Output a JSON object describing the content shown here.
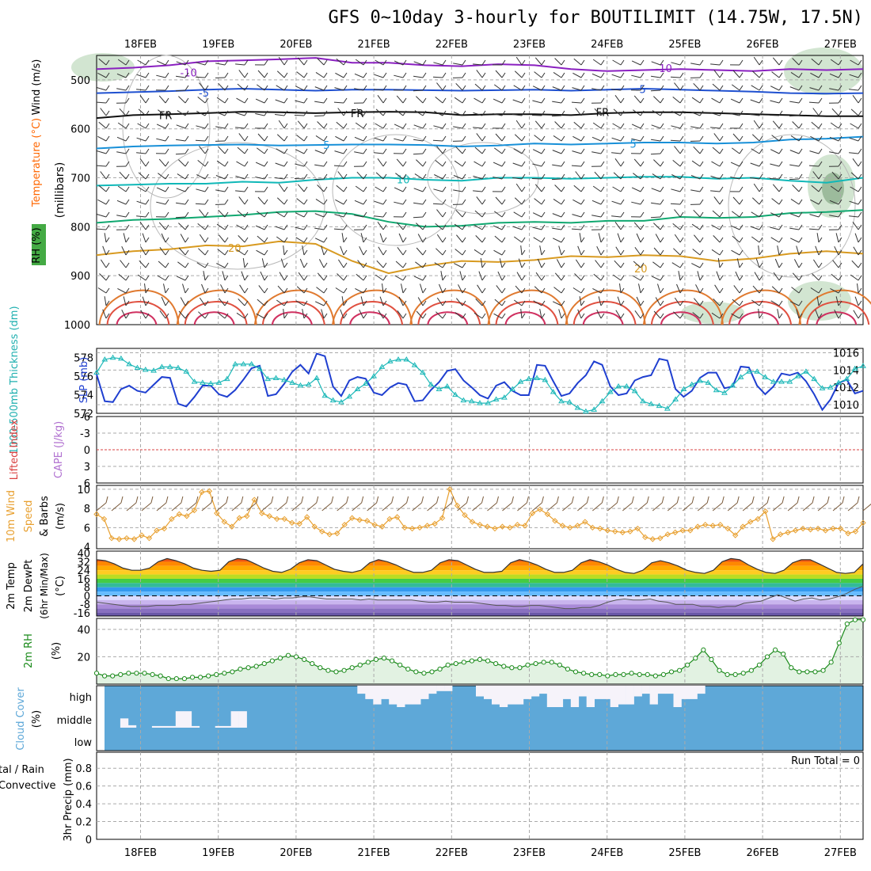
{
  "title": "GFS 0~10day 3-hourly for BOUTILIMIT (14.75W, 17.5N)",
  "colors": {
    "wind_barb": "#333333",
    "rh_fill": "#2e8b57",
    "slp": "#1f3fd0",
    "thickness": "#1cb8b8",
    "lifted": "#d94040",
    "wind_speed": "#e8a030",
    "rh_line": "#1a8a1a",
    "cloud": "#5ea8d8",
    "precip_total": "#2a9a2a",
    "precip_conv": "#dd2222",
    "temp_label": "#ff6600",
    "cape_label": "#b070d0",
    "thickness_label": "#20b0b0"
  },
  "chart_data": [
    {
      "panel": "upper-air",
      "type": "contour",
      "ylabel_parts": [
        "Wind (m/s)",
        "Temperature (°C)",
        "RH (%)",
        "(millibars)"
      ],
      "x_dates": [
        "18FEB",
        "19FEB",
        "20FEB",
        "21FEB",
        "22FEB",
        "23FEB",
        "24FEB",
        "25FEB",
        "26FEB",
        "27FEB"
      ],
      "ylim": [
        1000,
        450
      ],
      "y_ticks": [
        500,
        600,
        700,
        800,
        900,
        1000
      ],
      "temperature_contours": [
        {
          "label": "-10",
          "color": "#8a20c0",
          "levels_mb": [
            478,
            475,
            470,
            462,
            460,
            458,
            455,
            465,
            465,
            470,
            472,
            468,
            470,
            478,
            482,
            480,
            478,
            480,
            482,
            478,
            480,
            478
          ]
        },
        {
          "label": "-5",
          "color": "#1f50d0",
          "levels_mb": [
            527,
            525,
            523,
            520,
            518,
            520,
            522,
            520,
            520,
            521,
            522,
            521,
            520,
            522,
            520,
            518,
            520,
            522,
            524,
            527,
            528,
            527
          ]
        },
        {
          "label": "FR",
          "color": "#111111",
          "levels_mb": [
            578,
            572,
            570,
            568,
            565,
            566,
            568,
            566,
            565,
            566,
            572,
            570,
            570,
            572,
            568,
            566,
            566,
            568,
            570,
            572,
            574,
            574
          ]
        },
        {
          "label": "5",
          "color": "#1890d8",
          "levels_mb": [
            640,
            636,
            634,
            633,
            632,
            634,
            633,
            632,
            632,
            633,
            636,
            634,
            630,
            632,
            630,
            628,
            628,
            630,
            628,
            622,
            620,
            616
          ]
        },
        {
          "label": "10",
          "color": "#10b8b8",
          "levels_mb": [
            716,
            714,
            712,
            712,
            708,
            710,
            704,
            700,
            700,
            704,
            706,
            700,
            700,
            702,
            700,
            698,
            698,
            702,
            700,
            706,
            710,
            700
          ]
        },
        {
          "label": "",
          "color": "#10a870",
          "levels_mb": [
            792,
            786,
            784,
            780,
            776,
            770,
            768,
            774,
            790,
            800,
            798,
            792,
            790,
            792,
            788,
            788,
            780,
            782,
            780,
            772,
            770,
            766
          ]
        },
        {
          "label": "20",
          "color": "#d89a20",
          "levels_mb": [
            858,
            850,
            846,
            838,
            840,
            830,
            835,
            870,
            895,
            880,
            870,
            872,
            868,
            860,
            862,
            858,
            860,
            870,
            865,
            855,
            850,
            855
          ]
        }
      ],
      "contour_labels": [
        {
          "text": "-10",
          "x": 0.12,
          "mb": 485
        },
        {
          "text": "-10",
          "x": 0.74,
          "mb": 476
        },
        {
          "text": "-5",
          "x": 0.14,
          "mb": 526
        },
        {
          "text": "-5",
          "x": 0.71,
          "mb": 519
        },
        {
          "text": "FR",
          "x": 0.09,
          "mb": 572
        },
        {
          "text": "FR",
          "x": 0.34,
          "mb": 568
        },
        {
          "text": "FR",
          "x": 0.66,
          "mb": 566
        },
        {
          "text": "5",
          "x": 0.3,
          "mb": 633
        },
        {
          "text": "5",
          "x": 0.7,
          "mb": 630
        },
        {
          "text": "10",
          "x": 0.4,
          "mb": 703
        },
        {
          "text": "20",
          "x": 0.18,
          "mb": 843
        },
        {
          "text": "20",
          "x": 0.71,
          "mb": 885
        }
      ]
    },
    {
      "panel": "slp-thickness",
      "type": "line",
      "ylabel_left": "1000-500mb Thickness (dm)",
      "ylabel_right": "SLP (mb)",
      "thickness_ticks": [
        572,
        574,
        576,
        578
      ],
      "slp_ticks": [
        1010,
        1012,
        1014,
        1016
      ],
      "thickness_ylim": [
        572,
        579
      ],
      "slp_ylim": [
        1009,
        1016.5
      ],
      "slp_values": [
        1013.5,
        1010.4,
        1010.3,
        1011.8,
        1012.2,
        1011.6,
        1011.4,
        1012.3,
        1013.2,
        1013.1,
        1010.1,
        1009.8,
        1010.9,
        1012.2,
        1012.2,
        1011.2,
        1010.9,
        1011.7,
        1012.9,
        1014.2,
        1014.5,
        1011.0,
        1011.2,
        1012.4,
        1013.8,
        1014.6,
        1013.6,
        1015.9,
        1015.6,
        1012.1,
        1011.0,
        1012.8,
        1013.2,
        1013.0,
        1011.4,
        1011.1,
        1012.0,
        1012.5,
        1012.3,
        1010.4,
        1010.5,
        1011.7,
        1012.6,
        1013.9,
        1014.1,
        1012.8,
        1012.0,
        1011.1,
        1010.7,
        1012.2,
        1012.6,
        1011.6,
        1011.1,
        1011.1,
        1014.6,
        1014.5,
        1012.7,
        1011.0,
        1011.3,
        1012.5,
        1013.4,
        1015.0,
        1014.6,
        1012.1,
        1011.1,
        1011.3,
        1012.8,
        1013.2,
        1013.4,
        1015.3,
        1015.1,
        1011.8,
        1010.9,
        1011.6,
        1013.1,
        1013.7,
        1013.7,
        1011.9,
        1012.1,
        1014.4,
        1014.3,
        1012.2,
        1011.2,
        1012.1,
        1013.6,
        1013.4,
        1013.7,
        1012.7,
        1011.2,
        1009.4,
        1010.6,
        1012.5,
        1012.9,
        1011.3,
        1011.6
      ],
      "thickness_values": [
        576.4,
        577.8,
        578.0,
        577.9,
        577.3,
        576.9,
        576.7,
        576.6,
        577.0,
        577.0,
        576.9,
        576.5,
        575.4,
        575.3,
        575.2,
        575.3,
        575.7,
        577.3,
        577.3,
        577.3,
        576.8,
        575.7,
        575.8,
        575.6,
        575.3,
        575.0,
        575.1,
        575.8,
        573.9,
        573.4,
        573.2,
        573.8,
        574.6,
        575.2,
        576.0,
        577.0,
        577.6,
        577.8,
        577.8,
        577.2,
        576.4,
        575.1,
        574.6,
        574.9,
        574.0,
        573.4,
        573.3,
        573.1,
        573.1,
        573.5,
        573.7,
        574.6,
        575.4,
        575.7,
        575.8,
        575.6,
        574.3,
        573.3,
        573.2,
        572.6,
        572.2,
        572.4,
        573.3,
        574.3,
        574.9,
        574.9,
        574.4,
        573.3,
        573.0,
        572.8,
        572.5,
        573.5,
        574.6,
        575.1,
        575.5,
        575.3,
        574.5,
        574.2,
        575.0,
        575.9,
        576.5,
        576.5,
        575.9,
        575.4,
        575.4,
        575.4,
        576.0,
        576.5,
        575.7,
        574.7,
        574.8,
        575.3,
        575.7,
        576.8,
        577.1
      ]
    },
    {
      "panel": "cape-li",
      "type": "line",
      "ylabel_left": "Lifted Index",
      "ylabel_right": "CAPE (J/kg)",
      "li_ticks": [
        "-6",
        "-3",
        "0",
        "3",
        "6"
      ],
      "li_ylim": [
        -6,
        6
      ],
      "li_zero_dashed": true
    },
    {
      "panel": "surface-wind",
      "type": "line",
      "ylabel": "10m Wind Speed (m/s) & Barbs",
      "y_ticks": [
        4,
        6,
        8,
        10
      ],
      "ylim": [
        3.8,
        10.4
      ],
      "values": [
        7.4,
        6.9,
        4.9,
        4.8,
        4.9,
        4.8,
        5.2,
        4.9,
        5.7,
        5.9,
        6.9,
        7.4,
        7.2,
        7.8,
        9.7,
        9.8,
        7.5,
        6.6,
        6.1,
        7.0,
        7.2,
        8.9,
        7.5,
        7.2,
        6.9,
        6.9,
        6.5,
        6.4,
        7.1,
        6.1,
        5.6,
        5.3,
        5.4,
        6.3,
        7.0,
        6.8,
        6.7,
        6.3,
        6.1,
        6.9,
        7.1,
        6.0,
        5.9,
        6.0,
        6.2,
        6.4,
        7.0,
        10.0,
        8.3,
        7.3,
        6.6,
        6.3,
        6.1,
        5.9,
        6.1,
        6.0,
        6.3,
        6.2,
        7.5,
        7.9,
        7.4,
        6.7,
        6.2,
        6.0,
        6.2,
        6.6,
        6.0,
        5.9,
        5.7,
        5.6,
        5.5,
        5.6,
        5.9,
        5.0,
        4.8,
        4.9,
        5.3,
        5.5,
        5.7,
        5.7,
        6.1,
        6.3,
        6.2,
        6.3,
        5.9,
        5.2,
        6.1,
        6.6,
        6.9,
        7.7,
        4.8,
        5.3,
        5.5,
        5.7,
        5.9,
        5.8,
        5.9,
        5.7,
        5.9,
        5.9,
        5.4,
        5.6,
        6.5
      ]
    },
    {
      "panel": "temp-dewpoint",
      "type": "area",
      "ylabel": "2m Temp 2m DewPt (6hr Min/Max) (°C)",
      "y_ticks": [
        -16,
        -8,
        0,
        8,
        16,
        24,
        32,
        40
      ],
      "ylim": [
        -19,
        42
      ],
      "temp_values": [
        34,
        33,
        30,
        26,
        24,
        24,
        26,
        32,
        35,
        33,
        30,
        26,
        24,
        23,
        24,
        32,
        35,
        34,
        30,
        26,
        23,
        22,
        25,
        31,
        34,
        33,
        29,
        25,
        23,
        22,
        24,
        31,
        34,
        32,
        29,
        25,
        22,
        22,
        24,
        31,
        34,
        33,
        29,
        25,
        22,
        22,
        23,
        31,
        34,
        32,
        29,
        25,
        22,
        22,
        24,
        31,
        34,
        32,
        29,
        25,
        22,
        21,
        24,
        31,
        33,
        31,
        28,
        24,
        22,
        21,
        24,
        32,
        35,
        34,
        29,
        25,
        22,
        21,
        24,
        31,
        34,
        34,
        30,
        26,
        22,
        21,
        22,
        30
      ],
      "dewpoint_values": [
        -6,
        -7,
        -8,
        -9,
        -10,
        -10,
        -10,
        -9,
        -9,
        -9,
        -8,
        -8,
        -7,
        -6,
        -5,
        -4,
        -3,
        -3,
        -2,
        -2,
        -2,
        -3,
        -2,
        -2,
        -1,
        -1,
        -2,
        -3,
        -3,
        -3,
        -3,
        -4,
        -3,
        -4,
        -4,
        -4,
        -4,
        -4,
        -5,
        -6,
        -6,
        -5,
        -6,
        -6,
        -6,
        -7,
        -8,
        -9,
        -9,
        -10,
        -10,
        -9,
        -9,
        -10,
        -11,
        -12,
        -12,
        -11,
        -11,
        -9,
        -6,
        -4,
        -3,
        -4,
        -4,
        -3,
        -5,
        -6,
        -8,
        -8,
        -8,
        -10,
        -10,
        -11,
        -10,
        -10,
        -7,
        -6,
        -5,
        -2,
        1,
        -2,
        -5,
        -3,
        -2,
        -4,
        -3,
        -1,
        2,
        6,
        9
      ]
    },
    {
      "panel": "surface-rh",
      "type": "area",
      "ylabel": "2m RH (%)",
      "y_ticks": [
        20,
        40
      ],
      "ylim": [
        0,
        48
      ],
      "values": [
        8,
        6,
        6,
        7,
        8,
        8,
        8,
        7,
        6,
        4,
        4,
        4,
        5,
        5,
        6,
        7,
        8,
        9,
        11,
        12,
        13,
        15,
        17,
        19,
        21,
        20,
        18,
        15,
        12,
        10,
        9,
        10,
        12,
        14,
        16,
        18,
        19,
        17,
        14,
        11,
        9,
        8,
        9,
        11,
        14,
        15,
        16,
        17,
        18,
        17,
        15,
        13,
        12,
        12,
        14,
        15,
        16,
        16,
        14,
        11,
        9,
        8,
        7,
        7,
        6,
        7,
        7,
        8,
        7,
        7,
        6,
        7,
        9,
        10,
        14,
        19,
        25,
        18,
        10,
        7,
        7,
        8,
        10,
        14,
        20,
        25,
        22,
        12,
        9,
        9,
        9,
        10,
        16,
        30,
        44,
        47,
        47
      ]
    },
    {
      "panel": "cloud-cover",
      "type": "bar",
      "ylabel": "Cloud Cover (%)",
      "levels": [
        "high",
        "middle",
        "low"
      ],
      "high_cover": [
        0,
        0,
        0,
        0,
        0,
        0,
        0,
        0,
        0,
        0,
        0,
        0,
        0,
        0,
        0,
        0,
        0,
        0,
        0,
        0,
        0,
        0,
        0,
        0,
        0,
        0,
        0,
        0,
        0,
        0,
        0,
        0,
        0,
        18,
        30,
        42,
        30,
        42,
        48,
        42,
        42,
        30,
        18,
        12,
        12,
        0,
        0,
        0,
        24,
        30,
        42,
        48,
        42,
        42,
        30,
        24,
        18,
        48,
        48,
        30,
        48,
        24,
        48,
        30,
        30,
        48,
        42,
        42,
        24,
        18,
        42,
        18,
        18,
        48,
        30,
        30,
        18,
        0,
        0,
        0,
        0,
        0,
        0,
        0,
        0,
        0,
        0,
        0,
        0,
        0,
        0,
        0,
        0,
        0,
        0,
        0,
        0
      ],
      "middle_cover": [
        0,
        0,
        0,
        45,
        42,
        0,
        0,
        0,
        0,
        0,
        0,
        0,
        0,
        0,
        0,
        0,
        0,
        0,
        0,
        0,
        0,
        0,
        0,
        0,
        0,
        0,
        0,
        0,
        0,
        0,
        0,
        0,
        0,
        0,
        0,
        0,
        0,
        0,
        0,
        0,
        0,
        0,
        0,
        0,
        0,
        0,
        0,
        0,
        0,
        0,
        0,
        0,
        0,
        0,
        0,
        0,
        0,
        0,
        0,
        0,
        0,
        0,
        0,
        0,
        0,
        0,
        0,
        0,
        0,
        0,
        0,
        0,
        0,
        0,
        0,
        0,
        0,
        0,
        0,
        0,
        0,
        0,
        0,
        0,
        0,
        0,
        0,
        0,
        0,
        0,
        0,
        0,
        0,
        0,
        0,
        0,
        0
      ],
      "middle_cover_v": [
        0,
        0,
        0,
        0.45,
        0.12,
        0,
        0,
        0.08,
        0.08,
        0.08,
        0.8,
        0.8,
        0.08,
        0,
        0,
        0.08,
        0.08,
        0.8,
        0.8,
        0,
        0,
        0,
        0,
        0,
        0,
        0,
        0,
        0,
        0,
        0,
        0,
        0,
        0,
        0,
        0,
        0,
        0,
        0,
        0,
        0,
        0,
        0,
        0,
        0,
        0,
        0,
        0,
        0,
        0,
        0,
        0,
        0,
        0,
        0,
        0,
        0,
        0,
        0,
        0,
        0,
        0,
        0,
        0,
        0,
        0,
        0,
        0,
        0,
        0,
        0,
        0,
        0,
        0,
        0,
        0,
        0,
        0,
        0,
        0,
        0,
        0,
        0,
        0,
        0,
        0,
        0,
        0,
        0,
        0,
        0,
        0,
        0,
        0,
        0,
        0
      ]
    },
    {
      "panel": "precip",
      "type": "bar",
      "ylabel": "3hr Precip (mm)",
      "legend_left": [
        "Total / Rain",
        "Convective"
      ],
      "legend_left_visible": [
        "tal / Rain",
        "Convective"
      ],
      "y_ticks": [
        "0",
        "0.2",
        "0.4",
        "0.6",
        "0.8"
      ],
      "ylim": [
        0,
        0.98
      ],
      "run_total": "Run Total = 0",
      "values": []
    }
  ]
}
